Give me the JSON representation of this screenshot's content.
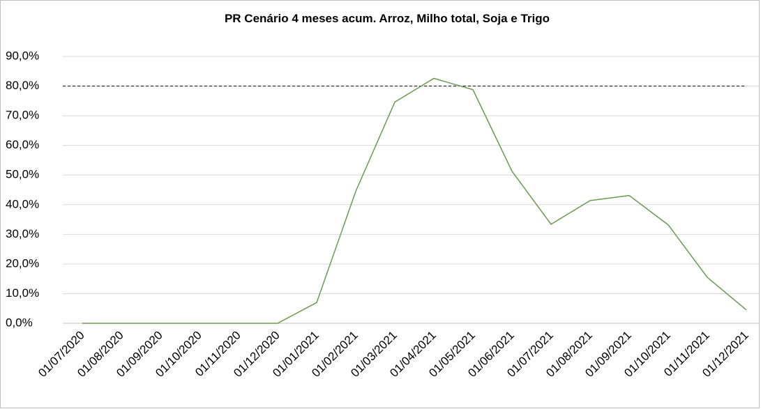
{
  "chart_data": {
    "type": "line",
    "title": "PR Cenário 4 meses acum. Arroz, Milho total, Soja e Trigo",
    "categories": [
      "01/07/2020",
      "01/08/2020",
      "01/09/2020",
      "01/10/2020",
      "01/11/2020",
      "01/12/2020",
      "01/01/2021",
      "01/02/2021",
      "01/03/2021",
      "01/04/2021",
      "01/05/2021",
      "01/06/2021",
      "01/07/2021",
      "01/08/2021",
      "01/09/2021",
      "01/10/2021",
      "01/11/2021",
      "01/12/2021"
    ],
    "series": [
      {
        "color": "#6b9a4e",
        "values": [
          0,
          0,
          0,
          0,
          0,
          0,
          7.0,
          44.5,
          74.6,
          82.6,
          78.8,
          51.3,
          33.4,
          41.4,
          43.1,
          33.2,
          15.5,
          4.5
        ]
      }
    ],
    "reference_line": {
      "value": 80,
      "color": "#000000"
    },
    "ylim": [
      0,
      90
    ],
    "yticks": [
      {
        "value": 0,
        "label": "0,0%"
      },
      {
        "value": 10,
        "label": "10,0%"
      },
      {
        "value": 20,
        "label": "20,0%"
      },
      {
        "value": 30,
        "label": "30,0%"
      },
      {
        "value": 40,
        "label": "40,0%"
      },
      {
        "value": 50,
        "label": "50,0%"
      },
      {
        "value": 60,
        "label": "60,0%"
      },
      {
        "value": 70,
        "label": "70,0%"
      },
      {
        "value": 80,
        "label": "80,0%"
      },
      {
        "value": 90,
        "label": "90,0%"
      }
    ],
    "grid": true
  }
}
